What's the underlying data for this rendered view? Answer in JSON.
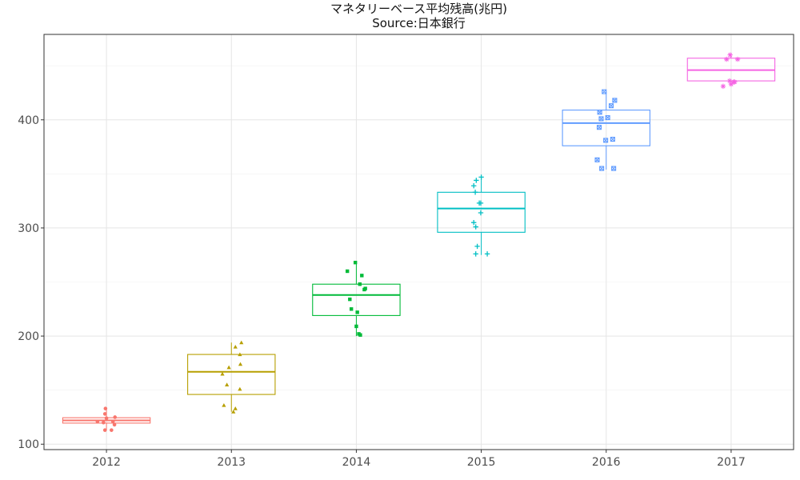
{
  "title": "マネタリーベース平均残高(兆円)",
  "subtitle": "Source:日本銀行",
  "chart_data": {
    "type": "box",
    "title": "マネタリーベース平均残高(兆円)",
    "subtitle": "Source:日本銀行",
    "xlabel": "",
    "ylabel": "",
    "categories": [
      "2012",
      "2013",
      "2014",
      "2015",
      "2016",
      "2017"
    ],
    "ylim": [
      95,
      479
    ],
    "yticks": [
      100,
      200,
      300,
      400
    ],
    "grid": true,
    "legend": "none",
    "series": [
      {
        "category": "2012",
        "color": "#F8766D",
        "marker": "circle",
        "q1": 119.5,
        "median": 122,
        "q3": 124.5,
        "whisker_low": 113,
        "whisker_high": 133,
        "points": [
          [
            -0.02,
            133
          ],
          [
            -0.03,
            128
          ],
          [
            0.0,
            124
          ],
          [
            -0.18,
            121
          ],
          [
            -0.06,
            120
          ],
          [
            0.13,
            121
          ],
          [
            0.17,
            125
          ],
          [
            0.16,
            118
          ],
          [
            0.1,
            113
          ],
          [
            -0.03,
            113
          ]
        ]
      },
      {
        "category": "2013",
        "color": "#B79F00",
        "marker": "triangle",
        "q1": 146,
        "median": 167,
        "q3": 183,
        "whisker_low": 130,
        "whisker_high": 194,
        "points": [
          [
            0.2,
            194
          ],
          [
            0.08,
            190
          ],
          [
            0.17,
            183
          ],
          [
            0.18,
            174
          ],
          [
            -0.05,
            171
          ],
          [
            -0.18,
            165
          ],
          [
            -0.09,
            155
          ],
          [
            0.17,
            151
          ],
          [
            -0.15,
            136
          ],
          [
            0.08,
            133
          ],
          [
            0.04,
            130
          ]
        ]
      },
      {
        "category": "2014",
        "color": "#00BA38",
        "marker": "square",
        "q1": 219,
        "median": 238,
        "q3": 248,
        "whisker_low": 200,
        "whisker_high": 268,
        "points": [
          [
            -0.18,
            260
          ],
          [
            -0.02,
            268
          ],
          [
            0.11,
            256
          ],
          [
            0.07,
            248
          ],
          [
            0.18,
            244
          ],
          [
            0.16,
            243
          ],
          [
            -0.13,
            234
          ],
          [
            -0.1,
            225
          ],
          [
            0.02,
            222
          ],
          [
            0.0,
            209
          ],
          [
            0.05,
            202
          ],
          [
            0.08,
            201
          ]
        ]
      },
      {
        "category": "2015",
        "color": "#00BFC4",
        "marker": "plus",
        "q1": 296,
        "median": 318,
        "q3": 333,
        "whisker_low": 275,
        "whisker_high": 347,
        "points": [
          [
            -0.1,
            344
          ],
          [
            -0.15,
            339
          ],
          [
            -0.12,
            333
          ],
          [
            0.0,
            347
          ],
          [
            -0.04,
            323
          ],
          [
            -0.01,
            323
          ],
          [
            -0.01,
            314
          ],
          [
            -0.15,
            305
          ],
          [
            -0.11,
            301
          ],
          [
            -0.08,
            283
          ],
          [
            -0.11,
            276
          ],
          [
            0.12,
            276
          ]
        ]
      },
      {
        "category": "2016",
        "color": "#619CFF",
        "marker": "boxed-x",
        "q1": 376,
        "median": 397,
        "q3": 409,
        "whisker_low": 354,
        "whisker_high": 426,
        "points": [
          [
            -0.04,
            426
          ],
          [
            0.17,
            418
          ],
          [
            0.1,
            413
          ],
          [
            -0.13,
            407
          ],
          [
            -0.1,
            401
          ],
          [
            0.03,
            402
          ],
          [
            -0.14,
            393
          ],
          [
            0.13,
            382
          ],
          [
            -0.01,
            381
          ],
          [
            -0.18,
            363
          ],
          [
            -0.09,
            355
          ],
          [
            0.15,
            355
          ]
        ]
      },
      {
        "category": "2017",
        "color": "#F564E3",
        "marker": "asterisk",
        "q1": 436,
        "median": 446,
        "q3": 457,
        "whisker_low": 433,
        "whisker_high": 460,
        "points": [
          [
            -0.02,
            460
          ],
          [
            -0.09,
            456
          ],
          [
            0.13,
            456
          ],
          [
            -0.03,
            436
          ],
          [
            0.07,
            435
          ],
          [
            0.05,
            435
          ],
          [
            0.0,
            433
          ],
          [
            -0.16,
            431
          ]
        ]
      }
    ]
  }
}
